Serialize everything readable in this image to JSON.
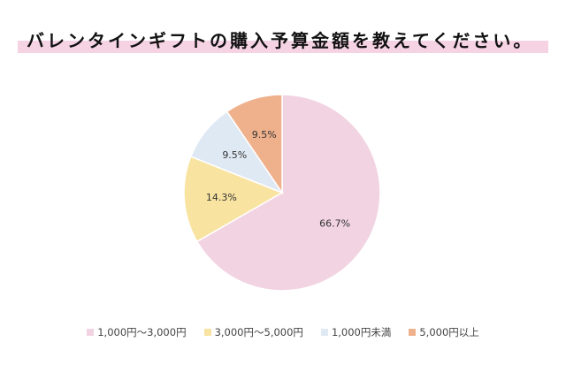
{
  "chart_data": {
    "type": "pie",
    "title": "バレンタインギフトの購入予算金額を教えてください。",
    "categories": [
      "1,000円〜3,000円",
      "3,000円〜5,000円",
      "1,000円未満",
      "5,000円以上"
    ],
    "values": [
      66.7,
      14.3,
      9.5,
      9.5
    ],
    "labels": [
      "66.7%",
      "14.3%",
      "9.5%",
      "9.5%"
    ],
    "colors": [
      "#f2d3e1",
      "#f8e3a1",
      "#dfe9f3",
      "#efb18c"
    ],
    "start_angle_deg": 0,
    "direction": "clockwise",
    "legend_position": "bottom"
  }
}
